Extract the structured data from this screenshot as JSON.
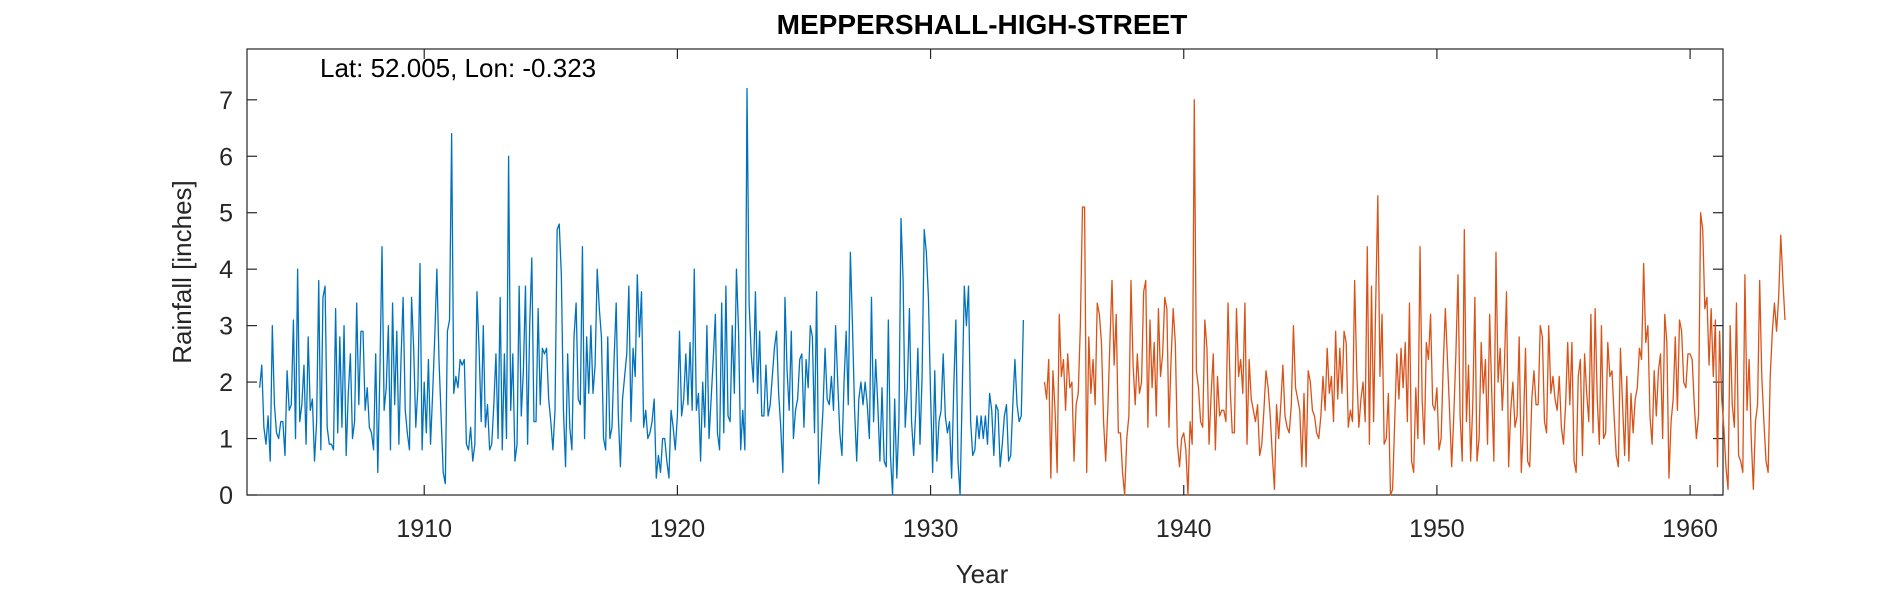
{
  "chart_data": {
    "type": "line",
    "title": "MEPPERSHALL-HIGH-STREET",
    "xlabel": "Year",
    "ylabel": "Rainfall [inches]",
    "annotation": "Lat: 52.005, Lon: -0.323",
    "xlim": [
      1903,
      1961.3
    ],
    "ylim": [
      0,
      7.9
    ],
    "xticks": [
      1910,
      1920,
      1930,
      1940,
      1950,
      1960
    ],
    "yticks": [
      0,
      1,
      2,
      3,
      4,
      5,
      6,
      7
    ],
    "grid": false,
    "colors": {
      "series1": "#0072BD",
      "series2": "#D95319"
    },
    "series": [
      {
        "x_start": 1903.5,
        "x_step": 0.08333,
        "values": [
          1.9,
          2.3,
          1.2,
          0.9,
          1.4,
          0.6,
          3.0,
          1.6,
          1.1,
          1.0,
          1.3,
          1.3,
          0.7,
          2.2,
          1.5,
          1.6,
          3.1,
          1.0,
          4.0,
          1.3,
          1.6,
          2.3,
          0.9,
          2.8,
          1.5,
          1.7,
          0.6,
          1.3,
          3.8,
          0.8,
          3.5,
          3.7,
          1.2,
          0.9,
          0.9,
          0.8,
          3.3,
          1.1,
          2.8,
          1.2,
          3.0,
          0.7,
          1.8,
          2.5,
          1.0,
          1.3,
          3.4,
          1.6,
          2.9,
          2.9,
          1.5,
          1.9,
          1.2,
          1.1,
          0.8,
          2.5,
          0.4,
          2.2,
          4.4,
          1.5,
          1.9,
          3.0,
          0.8,
          3.4,
          1.6,
          2.9,
          0.9,
          2.4,
          3.5,
          1.5,
          1.1,
          0.8,
          3.5,
          2.6,
          1.2,
          1.9,
          4.1,
          0.8,
          2.0,
          1.1,
          2.4,
          0.9,
          1.8,
          2.8,
          4.0,
          2.4,
          1.4,
          0.4,
          0.2,
          2.9,
          3.1,
          6.4,
          1.8,
          2.1,
          1.9,
          2.4,
          2.3,
          2.4,
          0.9,
          0.8,
          1.2,
          0.6,
          0.9,
          3.6,
          2.6,
          1.3,
          3.0,
          1.2,
          1.6,
          0.8,
          0.9,
          1.6,
          2.5,
          1.0,
          3.5,
          0.8,
          2.5,
          1.0,
          6.0,
          1.5,
          2.5,
          0.6,
          0.9,
          3.7,
          1.4,
          2.2,
          3.7,
          0.9,
          3.0,
          4.2,
          1.3,
          1.3,
          3.3,
          1.6,
          2.6,
          2.5,
          2.6,
          1.7,
          1.3,
          0.8,
          1.5,
          4.7,
          4.8,
          3.9,
          1.5,
          0.5,
          2.5,
          1.2,
          0.8,
          2.8,
          3.4,
          1.7,
          1.6,
          4.4,
          1.0,
          2.8,
          1.8,
          3.0,
          1.8,
          2.3,
          4.0,
          3.3,
          2.8,
          1.0,
          0.8,
          2.8,
          1.0,
          1.2,
          2.4,
          3.4,
          1.4,
          0.5,
          1.7,
          2.1,
          2.5,
          3.7,
          1.3,
          2.6,
          2.1,
          3.9,
          2.8,
          3.6,
          1.2,
          1.5,
          1.0,
          1.1,
          1.3,
          1.7,
          0.3,
          0.7,
          0.4,
          1.0,
          1.0,
          0.6,
          0.3,
          1.5,
          1.2,
          0.8,
          1.4,
          2.9,
          1.4,
          1.7,
          2.5,
          1.6,
          2.7,
          1.5,
          4.0,
          1.5,
          1.8,
          0.6,
          2.0,
          1.2,
          3.0,
          1.0,
          1.7,
          2.4,
          3.2,
          1.1,
          0.8,
          3.4,
          1.1,
          3.7,
          1.4,
          1.3,
          3.0,
          1.8,
          4.0,
          2.9,
          0.8,
          1.5,
          0.8,
          7.2,
          3.4,
          2.5,
          2.0,
          3.6,
          1.8,
          2.9,
          1.4,
          1.4,
          2.3,
          1.4,
          1.6,
          2.1,
          2.6,
          2.9,
          1.8,
          1.2,
          0.4,
          3.5,
          2.2,
          1.5,
          2.9,
          1.0,
          1.5,
          1.7,
          2.4,
          2.5,
          1.2,
          2.4,
          1.9,
          3.0,
          2.8,
          1.1,
          3.6,
          0.2,
          0.8,
          1.5,
          2.6,
          1.7,
          1.6,
          2.1,
          1.5,
          3.0,
          2.0,
          1.1,
          0.7,
          2.0,
          2.9,
          1.6,
          4.3,
          3.0,
          1.5,
          0.6,
          1.7,
          2.0,
          1.6,
          2.0,
          1.6,
          1.0,
          3.5,
          1.3,
          2.4,
          1.6,
          0.6,
          1.9,
          0.6,
          0.5,
          3.1,
          0.7,
          0.0,
          1.7,
          0.3,
          1.3,
          4.9,
          3.8,
          1.2,
          1.9,
          3.3,
          1.3,
          0.7,
          1.5,
          2.6,
          0.9,
          2.1,
          4.7,
          4.3,
          3.5,
          1.8,
          0.4,
          2.2,
          0.6,
          1.3,
          1.5,
          2.5,
          1.4,
          1.1,
          1.3,
          0.3,
          1.9,
          3.1,
          0.6,
          0.0,
          1.8,
          3.7,
          3.0,
          3.7,
          1.3,
          0.7,
          0.8,
          1.4,
          1.0,
          1.4,
          1.0,
          1.4,
          0.9,
          1.8,
          1.5,
          0.7,
          1.6,
          1.5,
          0.5,
          0.9,
          1.4,
          1.6,
          0.6,
          0.7,
          1.6,
          2.4,
          1.6,
          1.3,
          1.4,
          3.1
        ]
      },
      {
        "x_start": 1934.5,
        "x_step": 0.08333,
        "values": [
          2.0,
          1.7,
          2.4,
          0.3,
          2.2,
          1.5,
          0.4,
          3.2,
          2.1,
          2.4,
          1.5,
          2.5,
          1.9,
          2.0,
          0.6,
          1.6,
          1.8,
          3.0,
          5.1,
          5.1,
          0.4,
          2.8,
          1.8,
          2.4,
          1.6,
          3.4,
          3.2,
          2.7,
          1.3,
          0.6,
          1.5,
          2.7,
          3.8,
          2.3,
          3.2,
          1.1,
          1.1,
          0.4,
          0.0,
          1.0,
          1.4,
          3.8,
          2.3,
          1.6,
          2.5,
          1.8,
          2.0,
          3.6,
          3.8,
          1.2,
          3.1,
          1.9,
          2.7,
          1.4,
          3.3,
          2.1,
          2.5,
          3.5,
          3.3,
          1.2,
          2.4,
          3.3,
          2.7,
          0.9,
          0.5,
          1.0,
          1.1,
          0.8,
          0.0,
          1.3,
          0.9,
          7.0,
          2.2,
          1.9,
          1.3,
          1.2,
          3.1,
          2.6,
          0.9,
          1.8,
          2.5,
          0.8,
          2.1,
          1.4,
          1.5,
          1.5,
          1.3,
          3.4,
          1.9,
          1.1,
          1.1,
          3.3,
          2.1,
          2.4,
          1.8,
          3.4,
          0.9,
          2.4,
          1.7,
          1.5,
          1.3,
          1.6,
          0.7,
          0.9,
          1.5,
          2.2,
          1.9,
          1.4,
          0.7,
          0.1,
          1.6,
          1.0,
          1.6,
          2.3,
          1.4,
          1.2,
          1.1,
          1.6,
          3.0,
          1.9,
          1.7,
          1.5,
          0.5,
          1.8,
          0.5,
          2.2,
          2.0,
          1.5,
          1.4,
          1.1,
          1.0,
          1.4,
          2.1,
          1.5,
          2.6,
          1.8,
          2.1,
          1.3,
          2.9,
          1.7,
          2.6,
          1.8,
          2.9,
          2.7,
          1.2,
          1.5,
          1.3,
          3.8,
          2.2,
          1.2,
          1.7,
          2.0,
          1.3,
          4.4,
          0.9,
          3.7,
          1.3,
          3.4,
          5.3,
          2.1,
          3.2,
          0.9,
          1.0,
          1.8,
          0.0,
          0.1,
          1.3,
          2.5,
          1.7,
          2.6,
          1.9,
          2.7,
          1.3,
          3.4,
          0.6,
          0.4,
          1.9,
          1.0,
          4.4,
          1.7,
          0.9,
          2.7,
          2.4,
          3.2,
          1.6,
          1.5,
          1.9,
          0.8,
          1.0,
          2.3,
          3.3,
          2.4,
          1.5,
          0.5,
          1.4,
          2.5,
          3.9,
          1.4,
          0.6,
          4.7,
          1.3,
          2.3,
          0.6,
          1.6,
          3.5,
          0.6,
          1.0,
          2.7,
          1.8,
          2.4,
          0.9,
          3.2,
          1.8,
          0.6,
          4.3,
          2.0,
          2.6,
          1.5,
          2.3,
          3.6,
          0.5,
          1.5,
          2.0,
          1.2,
          1.4,
          2.8,
          0.4,
          1.2,
          2.6,
          0.6,
          0.5,
          1.7,
          2.2,
          1.6,
          1.6,
          3.0,
          2.8,
          1.3,
          1.1,
          3.0,
          1.8,
          2.1,
          1.7,
          1.5,
          2.1,
          1.2,
          0.9,
          1.6,
          2.7,
          1.6,
          2.7,
          0.6,
          0.4,
          2.1,
          2.4,
          0.7,
          2.5,
          1.8,
          1.3,
          3.2,
          1.1,
          3.3,
          1.7,
          0.9,
          3.0,
          1.0,
          1.1,
          2.7,
          2.1,
          2.2,
          1.4,
          0.7,
          0.5,
          2.6,
          1.6,
          0.7,
          2.1,
          0.6,
          1.8,
          1.1,
          1.7,
          1.9,
          2.6,
          2.4,
          4.1,
          2.7,
          3.0,
          1.4,
          0.9,
          2.2,
          1.4,
          2.2,
          2.5,
          1.0,
          3.2,
          2.7,
          0.3,
          1.3,
          1.7,
          2.8,
          1.5,
          3.1,
          2.9,
          2.0,
          1.9,
          2.5,
          2.5,
          2.4,
          1.6,
          1.0,
          1.4,
          5.0,
          4.7,
          3.3,
          3.5,
          2.3,
          3.3,
          2.1,
          3.1,
          0.5,
          2.9,
          1.7,
          1.2,
          0.5,
          0.1,
          3.0,
          1.6,
          1.2,
          3.4,
          0.7,
          0.6,
          0.4,
          3.9,
          1.5,
          2.4,
          1.0,
          0.1,
          1.3,
          1.6,
          3.8,
          2.1,
          1.3,
          0.6,
          0.4,
          2.1,
          2.9,
          3.4,
          2.9,
          3.5,
          4.6,
          3.8,
          3.1
        ]
      }
    ]
  }
}
